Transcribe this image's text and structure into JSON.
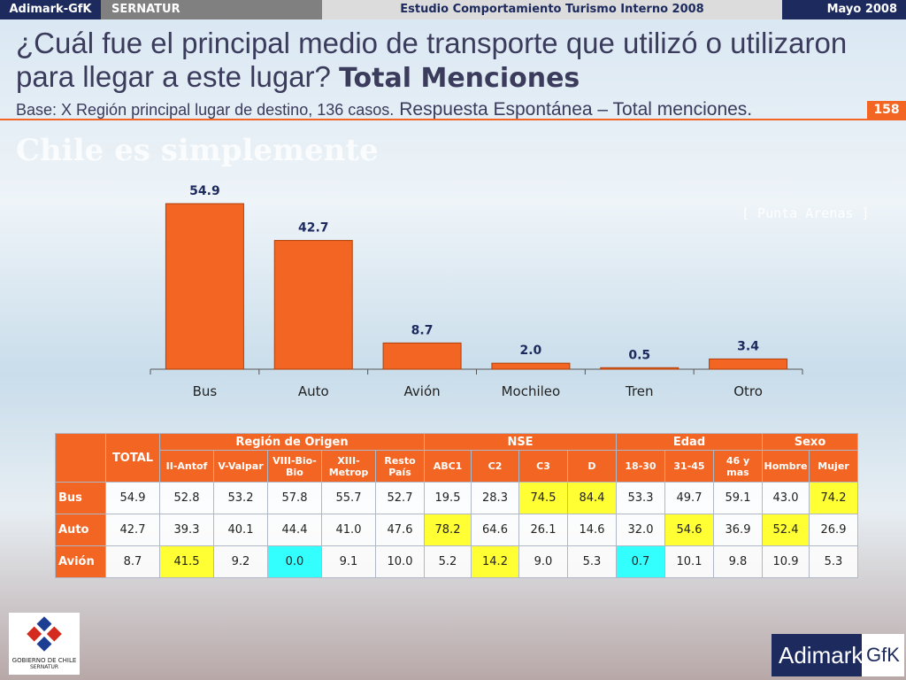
{
  "header": {
    "brand": "Adimark-GfK",
    "client": "SERNATUR",
    "study": "Estudio Comportamiento Turismo Interno 2008",
    "date": "Mayo 2008",
    "question": "¿Cuál fue el principal medio de transporte que utilizó o utilizaron para llegar a este lugar?",
    "question_bold": "Total Menciones",
    "base": "Base: X Región principal lugar de destino, 136 casos.",
    "note": "Respuesta Espontánea – Total menciones.",
    "page": "158"
  },
  "background": {
    "slogan": "Chile es simplemente",
    "place": "[ Punta Arenas ]"
  },
  "chart_data": {
    "type": "bar",
    "categories": [
      "Bus",
      "Auto",
      "Avión",
      "Mochileo",
      "Tren",
      "Otro"
    ],
    "values": [
      54.9,
      42.7,
      8.7,
      2.0,
      0.5,
      3.4
    ],
    "value_labels": [
      "54.9",
      "42.7",
      "8.7",
      "2.0",
      "0.5",
      "3.4"
    ],
    "color": "#f26522"
  },
  "table": {
    "corner": "TOTAL",
    "groups": [
      {
        "label": "Región de Origen",
        "span": 5
      },
      {
        "label": "NSE",
        "span": 4
      },
      {
        "label": "Edad",
        "span": 3
      },
      {
        "label": "Sexo",
        "span": 2
      }
    ],
    "columns": [
      "II-Antof",
      "V-Valpar",
      "VIII-Bio-Bio",
      "XIII-Metrop",
      "Resto País",
      "ABC1",
      "C2",
      "C3",
      "D",
      "18-30",
      "31-45",
      "46 y mas",
      "Hombre",
      "Mujer"
    ],
    "rows": [
      {
        "label": "Bus",
        "values": [
          "54.9",
          "52.8",
          "53.2",
          "57.8",
          "55.7",
          "52.7",
          "19.5",
          "28.3",
          "74.5",
          "84.4",
          "53.3",
          "49.7",
          "59.1",
          "43.0",
          "74.2"
        ],
        "fills": [
          null,
          null,
          null,
          null,
          null,
          null,
          null,
          null,
          "#ffff33",
          "#ffff33",
          null,
          null,
          null,
          null,
          "#ffff33"
        ]
      },
      {
        "label": "Auto",
        "values": [
          "42.7",
          "39.3",
          "40.1",
          "44.4",
          "41.0",
          "47.6",
          "78.2",
          "64.6",
          "26.1",
          "14.6",
          "32.0",
          "54.6",
          "36.9",
          "52.4",
          "26.9"
        ],
        "fills": [
          null,
          null,
          null,
          null,
          null,
          null,
          "#ffff33",
          null,
          null,
          null,
          null,
          "#ffff33",
          null,
          "#ffff33",
          null
        ]
      },
      {
        "label": "Avión",
        "values": [
          "8.7",
          "41.5",
          "9.2",
          "0.0",
          "9.1",
          "10.0",
          "5.2",
          "14.2",
          "9.0",
          "5.3",
          "0.7",
          "10.1",
          "9.8",
          "10.9",
          "5.3"
        ],
        "fills": [
          null,
          "#ffff33",
          null,
          "#33ffff",
          null,
          null,
          null,
          "#ffff33",
          null,
          null,
          "#33ffff",
          null,
          null,
          null,
          null
        ]
      }
    ]
  },
  "footer": {
    "gov": "GOBIERNO DE CHILE",
    "gov_sub": "SERNATUR",
    "logo": "Adimark",
    "logo_b": "GfK"
  }
}
